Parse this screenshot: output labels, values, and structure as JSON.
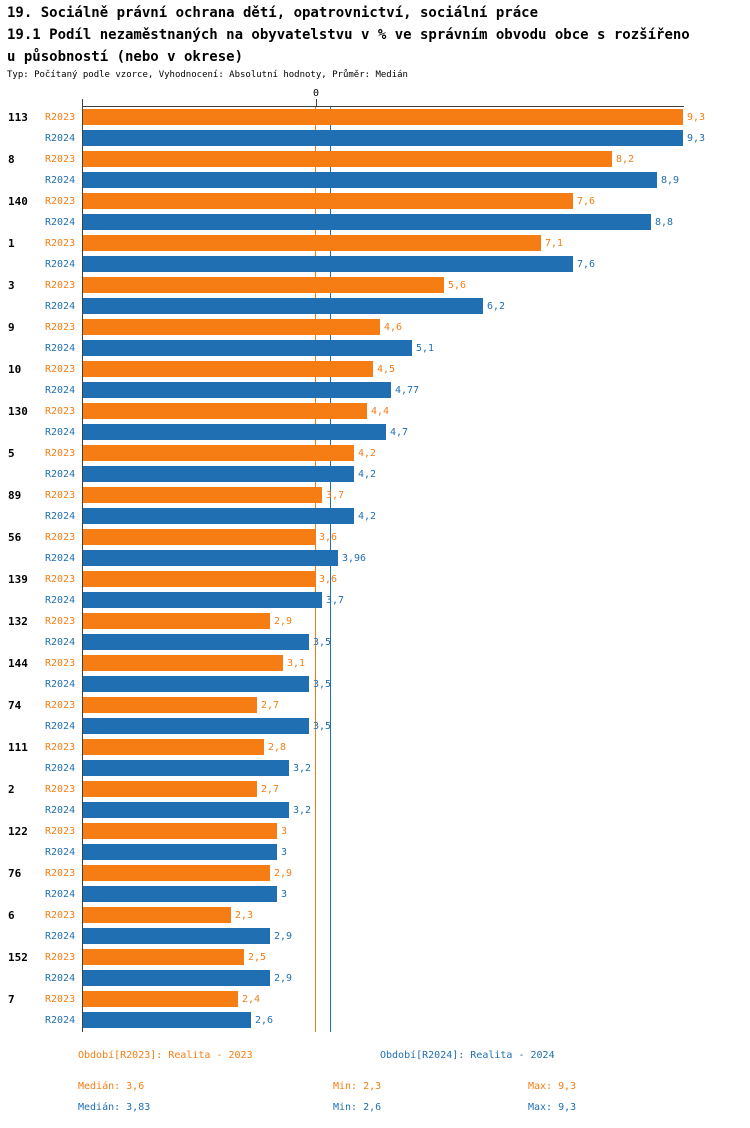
{
  "title": {
    "line1": "19. Sociálně právní ochrana dětí, opatrovnictví, sociální práce",
    "line2": "19.1 Podíl nezaměstnaných na obyvatelstvu v % ve správním obvodu obce s rozšířeno",
    "line3": "u působností (nebo v okrese)",
    "subtitle": "Typ: Počítaný podle vzorce, Vyhodnocení: Absolutní hodnoty, Průměr: Medián"
  },
  "axis": {
    "origin_label": "0"
  },
  "colors": {
    "r2023": "#F57D13",
    "r2024": "#1F6FB2",
    "axis": "#404040"
  },
  "chart_data": {
    "type": "bar",
    "orientation": "horizontal",
    "xlim": [
      0,
      9.3
    ],
    "categories": [
      "113",
      "8",
      "140",
      "1",
      "3",
      "9",
      "10",
      "130",
      "5",
      "89",
      "56",
      "139",
      "132",
      "144",
      "74",
      "111",
      "2",
      "122",
      "76",
      "6",
      "152",
      "7"
    ],
    "series": [
      {
        "name": "R2023",
        "color": "#F57D13",
        "values": [
          9.3,
          8.2,
          7.6,
          7.1,
          5.6,
          4.6,
          4.5,
          4.4,
          4.2,
          3.7,
          3.6,
          3.6,
          2.9,
          3.1,
          2.7,
          2.8,
          2.7,
          3,
          2.9,
          2.3,
          2.5,
          2.4
        ],
        "labels": [
          "9,3",
          "8,2",
          "7,6",
          "7,1",
          "5,6",
          "4,6",
          "4,5",
          "4,4",
          "4,2",
          "3,7",
          "3,6",
          "3,6",
          "2,9",
          "3,1",
          "2,7",
          "2,8",
          "2,7",
          "3",
          "2,9",
          "2,3",
          "2,5",
          "2,4"
        ],
        "median": 3.6
      },
      {
        "name": "R2024",
        "color": "#1F6FB2",
        "values": [
          9.3,
          8.9,
          8.8,
          7.6,
          6.2,
          5.1,
          4.77,
          4.7,
          4.2,
          4.2,
          3.96,
          3.7,
          3.5,
          3.5,
          3.5,
          3.2,
          3.2,
          3,
          3,
          2.9,
          2.9,
          2.6
        ],
        "labels": [
          "9,3",
          "8,9",
          "8,8",
          "7,6",
          "6,2",
          "5,1",
          "4,77",
          "4,7",
          "4,2",
          "4,2",
          "3,96",
          "3,7",
          "3,5",
          "3,5",
          "3,5",
          "3,2",
          "3,2",
          "3",
          "3",
          "2,9",
          "2,9",
          "2,6"
        ],
        "median": 3.83
      }
    ],
    "median_lines": [
      {
        "series": "R2023",
        "value": 3.6,
        "color": "#F57D13"
      },
      {
        "series": "R2024",
        "value": 3.83,
        "color": "#1F6FB2"
      }
    ]
  },
  "legend": {
    "r2023_label": "Období[R2023]: Realita - 2023",
    "r2024_label": "Období[R2024]: Realita - 2024",
    "stats_2023": {
      "median": "Medián: 3,6",
      "min": "Min: 2,3",
      "max": "Max: 9,3"
    },
    "stats_2024": {
      "median": "Medián: 3,83",
      "min": "Min: 2,6",
      "max": "Max: 9,3"
    }
  }
}
